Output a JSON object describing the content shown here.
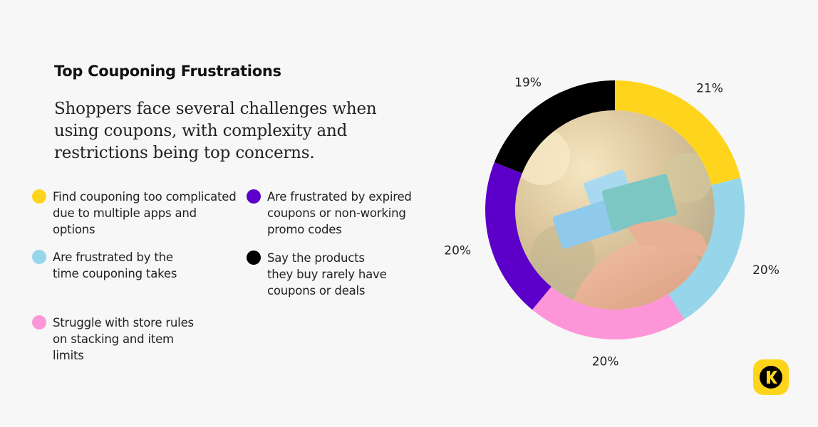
{
  "title": "Top Couponing Frustrations",
  "subtitle": "Shoppers face several challenges when using coupons, with complexity and restrictions being top concerns.",
  "legend": [
    {
      "label": "Find couponing too complicated due to multiple apps and options",
      "color": "#ffd41c"
    },
    {
      "label": "Are frustrated by the time couponing takes",
      "color": "#97d6ea"
    },
    {
      "label": "Struggle with store rules on stacking and item limits",
      "color": "#fd96d8"
    },
    {
      "label": "Are frustrated by expired coupons or non-working promo codes",
      "color": "#5c00c9"
    },
    {
      "label": "Say the products they buy rarely have coupons or deals",
      "color": "#000000"
    }
  ],
  "chart_data": {
    "type": "pie",
    "variant": "donut",
    "title": "Top Couponing Frustrations",
    "categories": [
      "Find couponing too complicated due to multiple apps and options",
      "Are frustrated by the time couponing takes",
      "Struggle with store rules on stacking and item limits",
      "Are frustrated by expired coupons or non-working promo codes",
      "Say the products they buy rarely have coupons or deals"
    ],
    "values": [
      21,
      20,
      20,
      20,
      19
    ],
    "labels": [
      "21%",
      "20%",
      "20%",
      "20%",
      "19%"
    ],
    "colors": [
      "#ffd41c",
      "#97d6ea",
      "#fd96d8",
      "#5c00c9",
      "#000000"
    ],
    "legend": "left",
    "center_image": "photo of hands holding coupons"
  },
  "logo": {
    "glyph": "K",
    "color": "#ffd51c"
  }
}
